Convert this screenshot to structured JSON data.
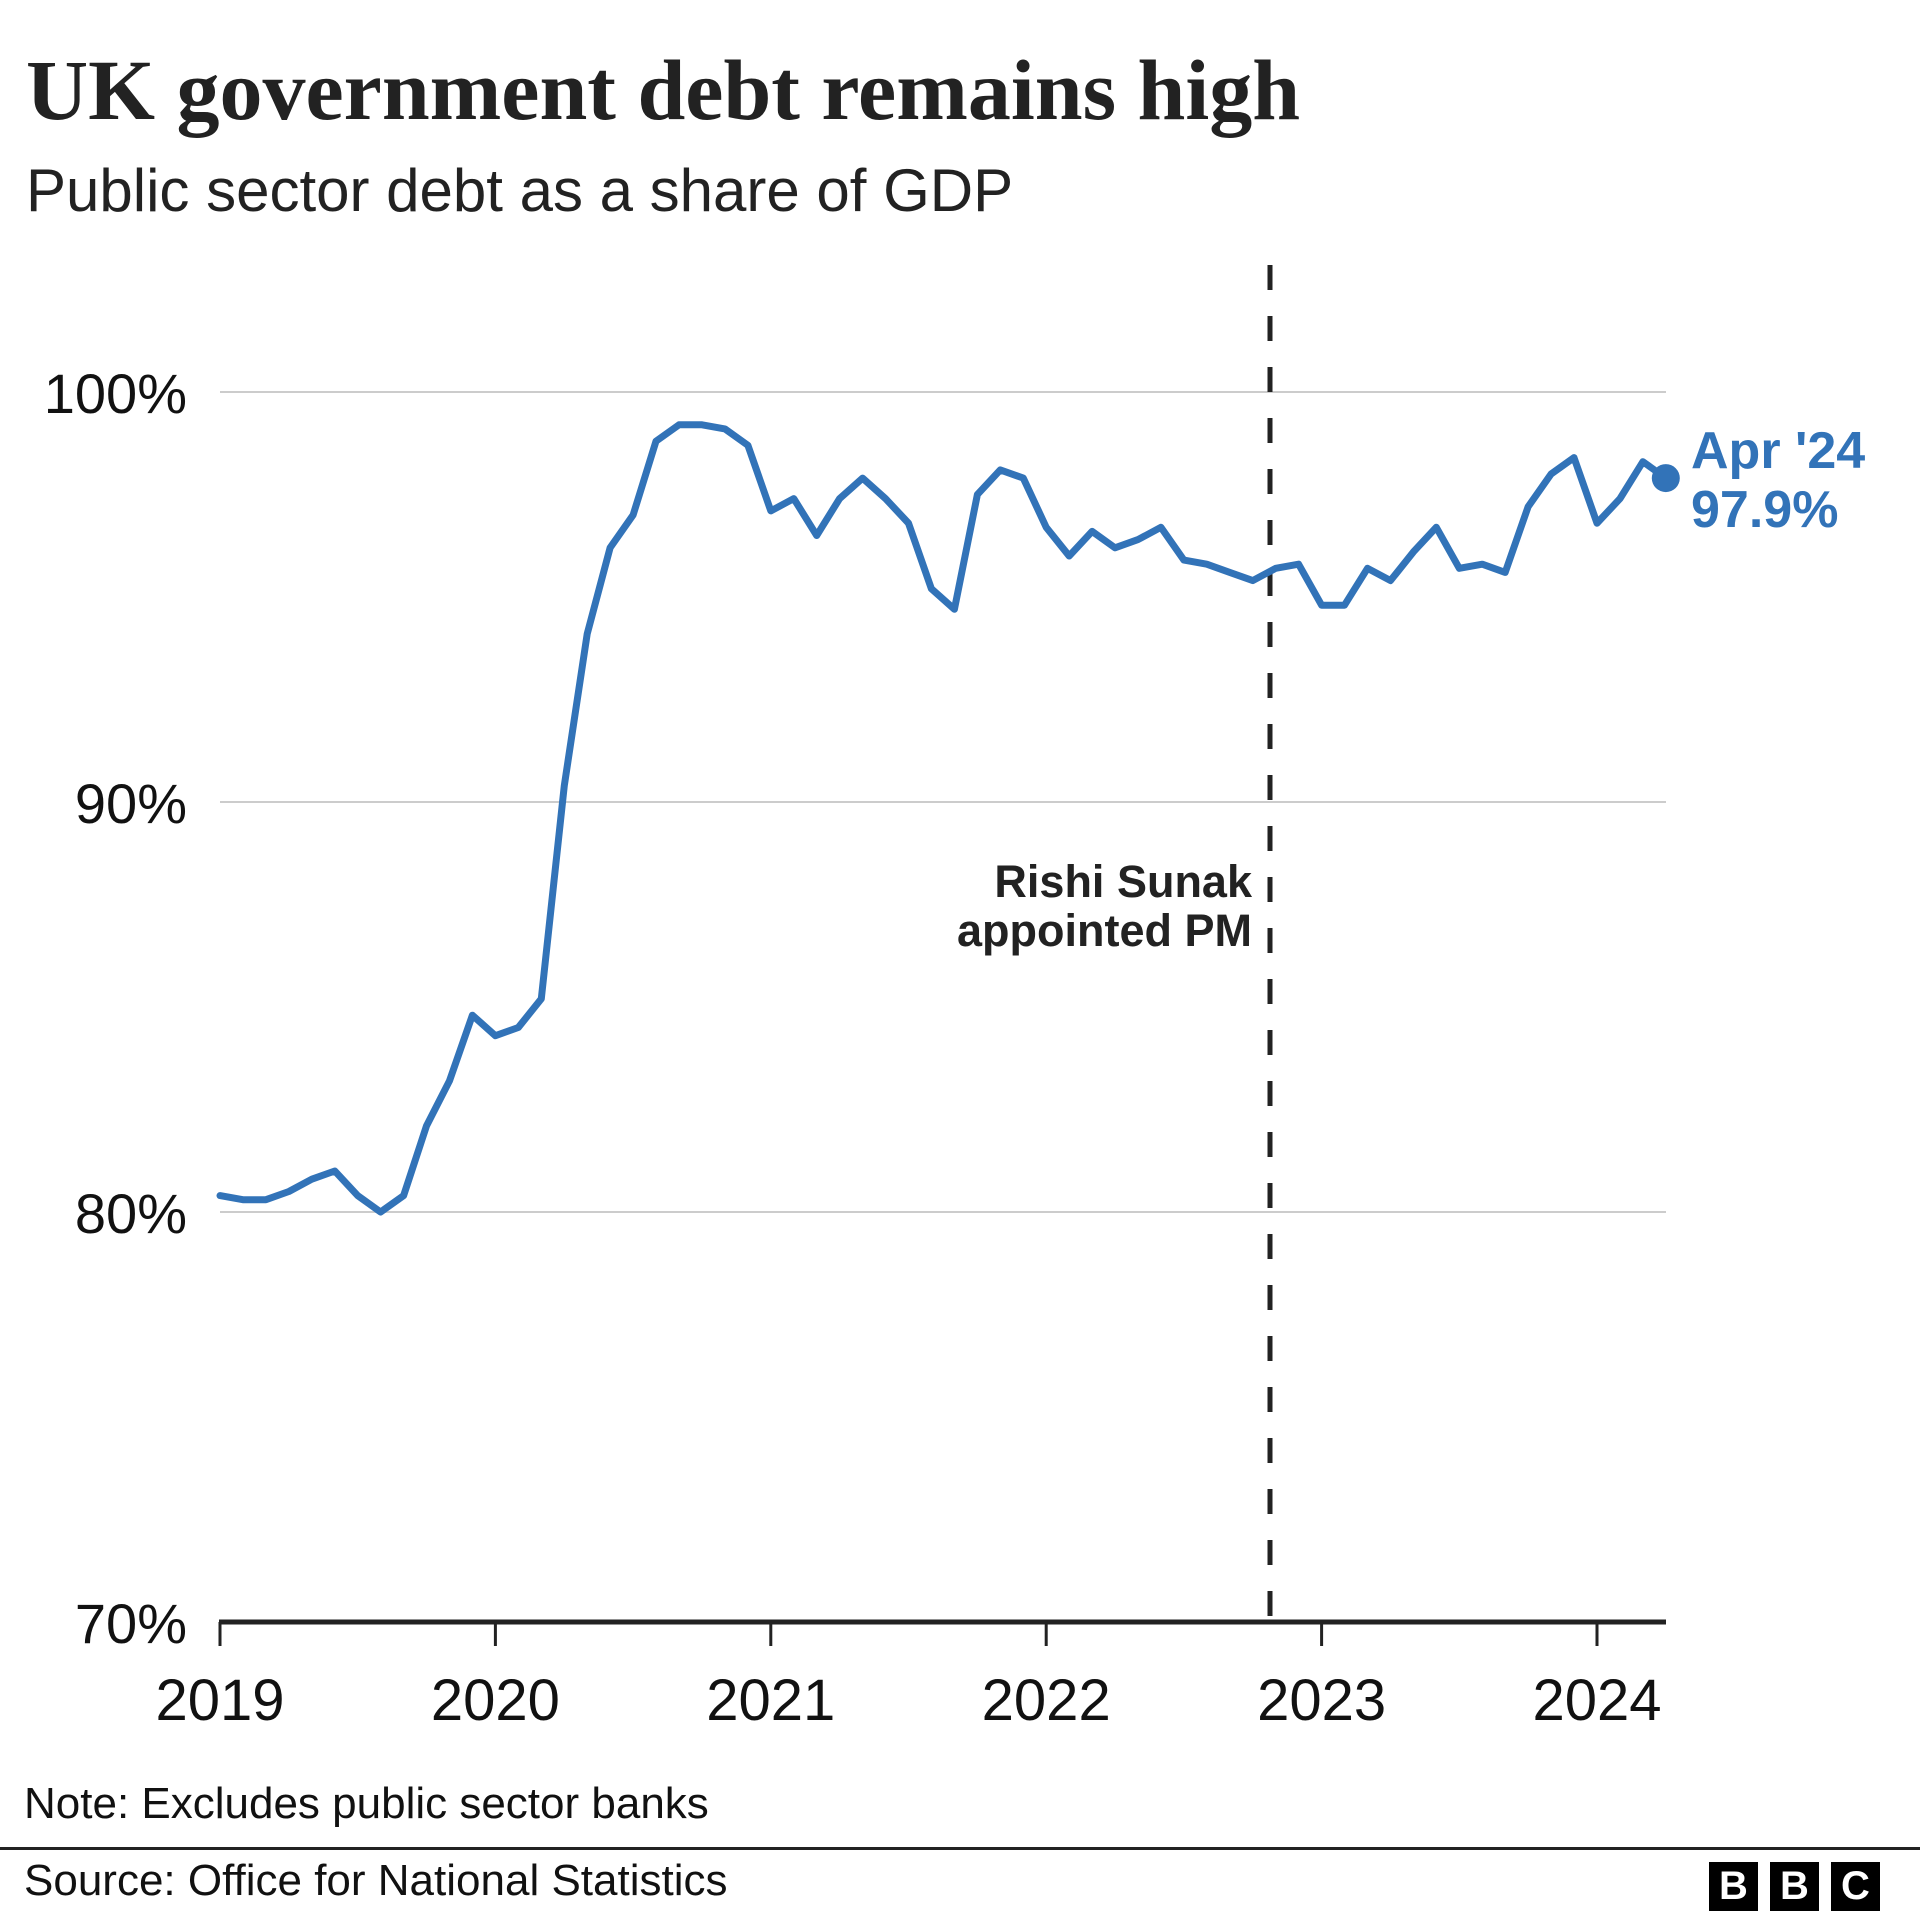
{
  "header": {
    "title": "UK government debt remains high",
    "subtitle": "Public sector debt as a share of GDP"
  },
  "footer": {
    "note": "Note: Excludes public sector banks",
    "source": "Source: Office for National Statistics",
    "logo_letters": [
      "B",
      "B",
      "C"
    ]
  },
  "colors": {
    "line": "#3273b8",
    "text": "#222222",
    "grid": "#cccccc",
    "axis": "#222222",
    "annotation_line": "#222222"
  },
  "chart_data": {
    "type": "line",
    "title": "UK government debt remains high",
    "subtitle": "Public sector debt as a share of GDP",
    "xlabel": "",
    "ylabel": "",
    "ylim": [
      70,
      100
    ],
    "yticks": [
      70,
      80,
      90,
      100
    ],
    "ytick_labels": [
      "70%",
      "80%",
      "90%",
      "100%"
    ],
    "xticks": [
      "2019",
      "2020",
      "2021",
      "2022",
      "2023",
      "2024"
    ],
    "grid": "horizontal",
    "legend": "none",
    "frequency": "monthly",
    "start": "Jan 2019",
    "end": "Apr 2024",
    "series": [
      {
        "name": "Public sector net debt (% of GDP)",
        "color": "#3273b8",
        "values": [
          80.4,
          80.3,
          80.3,
          80.5,
          80.8,
          81.0,
          80.4,
          80.0,
          80.4,
          82.1,
          83.2,
          84.8,
          84.3,
          84.5,
          85.2,
          90.4,
          94.1,
          96.2,
          97.0,
          98.8,
          99.2,
          99.2,
          99.1,
          98.7,
          97.1,
          97.4,
          96.5,
          97.4,
          97.9,
          97.4,
          96.8,
          95.2,
          94.7,
          97.5,
          98.1,
          97.9,
          96.7,
          96.0,
          96.6,
          96.2,
          96.4,
          96.7,
          95.9,
          95.8,
          95.6,
          95.4,
          95.7,
          95.8,
          94.8,
          94.8,
          95.7,
          95.4,
          96.1,
          96.7,
          95.7,
          95.8,
          95.6,
          97.2,
          98.0,
          98.4,
          96.8,
          97.4,
          98.3,
          97.9
        ]
      }
    ],
    "annotations": [
      {
        "type": "vertical-dashed-line",
        "at": "Oct 2022",
        "label_lines": [
          "Rishi Sunak",
          "appointed PM"
        ]
      },
      {
        "type": "end-label",
        "at": "Apr 2024",
        "label_lines": [
          "Apr '24",
          "97.9%"
        ],
        "value": 97.9
      }
    ]
  }
}
